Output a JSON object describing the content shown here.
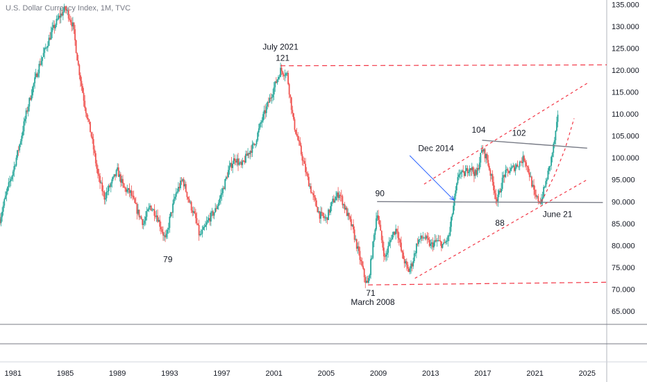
{
  "header": {
    "title": "U.S. Dollar Currency Index, 1M, TVC"
  },
  "colors": {
    "up": "#26a69a",
    "down": "#ef5350",
    "resistance": "#f23645",
    "trend": "#787b86",
    "arrow": "#2962ff"
  },
  "chart_data": {
    "type": "candlestick",
    "title": "U.S. Dollar Currency Index, 1M, TVC",
    "ylim": [
      62,
      136
    ],
    "xlim": [
      1980.0,
      2026.5
    ],
    "y_ticks": [
      "65.000",
      "70.000",
      "75.000",
      "80.000",
      "85.000",
      "90.000",
      "95.000",
      "100.000",
      "105.000",
      "110.000",
      "115.000",
      "120.000",
      "125.000",
      "130.000",
      "135.000"
    ],
    "x_ticks": [
      "1981",
      "1985",
      "1989",
      "1993",
      "1997",
      "2001",
      "2005",
      "2009",
      "2013",
      "2017",
      "2021",
      "2025"
    ],
    "series": [
      {
        "name": "",
        "x": [
          1980.0,
          1980.5,
          1981.0,
          1981.5,
          1982.0,
          1982.5,
          1983.0,
          1983.5,
          1984.0,
          1984.5,
          1985.0,
          1985.2,
          1985.6,
          1986.0,
          1986.5,
          1987.0,
          1987.5,
          1988.0,
          1988.5,
          1989.0,
          1989.5,
          1990.0,
          1990.5,
          1991.0,
          1991.5,
          1992.0,
          1992.7,
          1993.0,
          1993.5,
          1994.0,
          1994.5,
          1995.0,
          1995.3,
          1995.7,
          1996.0,
          1996.5,
          1997.0,
          1997.5,
          1998.0,
          1998.5,
          1999.0,
          1999.5,
          2000.0,
          2000.5,
          2001.0,
          2001.5,
          2002.0,
          2002.5,
          2003.0,
          2003.5,
          2004.0,
          2004.5,
          2005.0,
          2005.5,
          2006.0,
          2006.5,
          2007.0,
          2007.5,
          2008.0,
          2008.2,
          2008.5,
          2008.9,
          2009.2,
          2009.5,
          2010.0,
          2010.4,
          2010.8,
          2011.3,
          2011.6,
          2012.0,
          2012.5,
          2013.0,
          2013.5,
          2014.0,
          2014.4,
          2014.8,
          2015.2,
          2015.5,
          2016.0,
          2016.5,
          2016.95,
          2017.3,
          2017.7,
          2018.1,
          2018.6,
          2019.0,
          2019.5,
          2020.2,
          2020.6,
          2021.0,
          2021.45,
          2021.8,
          2022.2,
          2022.5,
          2022.75
        ],
        "values": [
          86,
          92,
          97,
          103,
          110,
          116,
          121,
          125,
          129,
          132,
          134,
          133,
          130,
          121,
          112,
          105,
          96,
          91,
          94,
          97,
          93,
          92,
          88,
          85,
          89,
          87,
          81,
          86,
          92,
          95,
          90,
          86,
          82,
          84,
          86,
          88,
          92,
          97,
          100,
          98,
          101,
          103,
          108,
          112,
          116,
          120,
          119,
          108,
          102,
          96,
          91,
          87,
          86,
          90,
          92,
          88,
          84,
          78,
          72,
          71,
          78,
          88,
          82,
          77,
          82,
          84,
          78,
          74,
          76,
          81,
          82,
          80,
          81,
          80,
          82,
          90,
          97,
          96,
          98,
          96,
          102,
          100,
          95,
          90,
          96,
          97,
          98,
          100,
          96,
          91,
          90,
          94,
          99,
          104,
          109
        ]
      }
    ],
    "annotations": [
      {
        "label": "July 2021",
        "x": 2001.5,
        "y": 121
      },
      {
        "label": "121",
        "x": 2001.5,
        "y": 121
      },
      {
        "label": "79",
        "x": 1992.7,
        "y": 79
      },
      {
        "label": "90",
        "x": 2008.9,
        "y": 90
      },
      {
        "label": "71",
        "x": 2008.2,
        "y": 71
      },
      {
        "label": "March 2008",
        "x": 2008.2,
        "y": 71
      },
      {
        "label": "Dec 2014",
        "x": 2014.8,
        "y": 90
      },
      {
        "label": "104",
        "x": 2016.95,
        "y": 104
      },
      {
        "label": "102",
        "x": 2020.2,
        "y": 103
      },
      {
        "label": "88",
        "x": 2018.1,
        "y": 88
      },
      {
        "label": "June 21",
        "x": 2021.45,
        "y": 90
      }
    ],
    "lines": [
      {
        "name": "resistance-121",
        "style": "dashed",
        "points": [
          [
            2001.5,
            121
          ],
          [
            2026.5,
            121.2
          ]
        ]
      },
      {
        "name": "support-71",
        "style": "dashed",
        "points": [
          [
            2008.2,
            71
          ],
          [
            2026.5,
            71.6
          ]
        ]
      },
      {
        "name": "horizontal-90",
        "style": "solid",
        "points": [
          [
            2008.9,
            90
          ],
          [
            2026.2,
            89.8
          ]
        ]
      },
      {
        "name": "trend-104-102",
        "style": "solid",
        "points": [
          [
            2016.95,
            104
          ],
          [
            2025.0,
            102.2
          ]
        ]
      },
      {
        "name": "channel-upper",
        "style": "dashed",
        "points": [
          [
            2012.5,
            94
          ],
          [
            2025.0,
            117
          ]
        ]
      },
      {
        "name": "channel-lower",
        "style": "dashed",
        "points": [
          [
            2011.8,
            72.5
          ],
          [
            2025.0,
            95
          ]
        ]
      },
      {
        "name": "curve-projection",
        "style": "dashed",
        "points": [
          [
            2021.5,
            90
          ],
          [
            2022.5,
            96
          ],
          [
            2023.3,
            102
          ],
          [
            2024.0,
            109
          ]
        ]
      }
    ]
  }
}
